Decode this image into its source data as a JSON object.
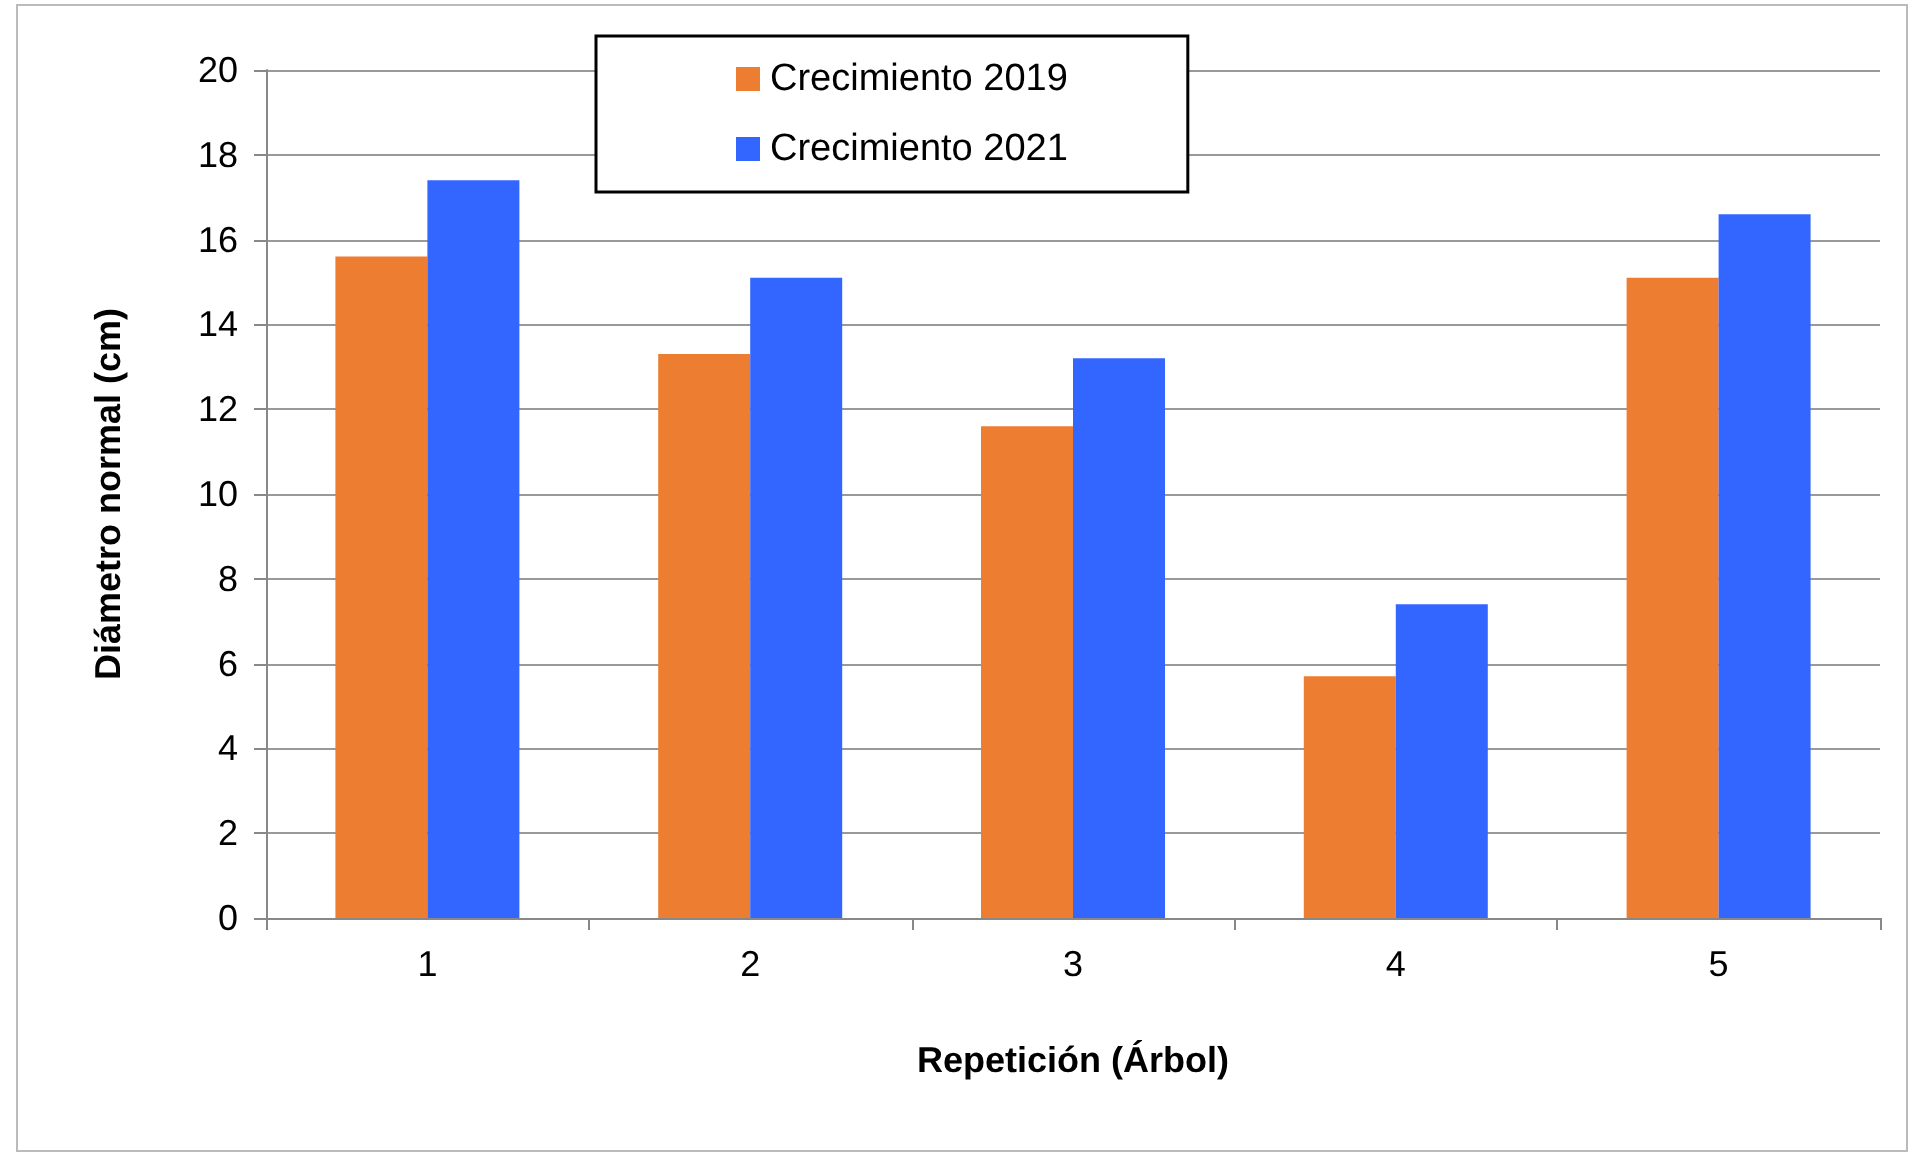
{
  "chart_data": {
    "type": "bar",
    "xlabel": "Repetición (Árbol)",
    "ylabel": "Diámetro normal (cm)",
    "categories": [
      "1",
      "2",
      "3",
      "4",
      "5"
    ],
    "series": [
      {
        "name": "Crecimiento 2019",
        "color": "#ed7d31",
        "values": [
          15.6,
          13.3,
          11.6,
          5.7,
          15.1
        ]
      },
      {
        "name": "Crecimiento 2021",
        "color": "#3366ff",
        "values": [
          17.4,
          15.1,
          13.2,
          7.4,
          16.6
        ]
      }
    ],
    "ylim": [
      0,
      20
    ],
    "yticks": [
      0,
      2,
      4,
      6,
      8,
      10,
      12,
      14,
      16,
      18,
      20
    ],
    "grid": "y",
    "legend": "top"
  }
}
